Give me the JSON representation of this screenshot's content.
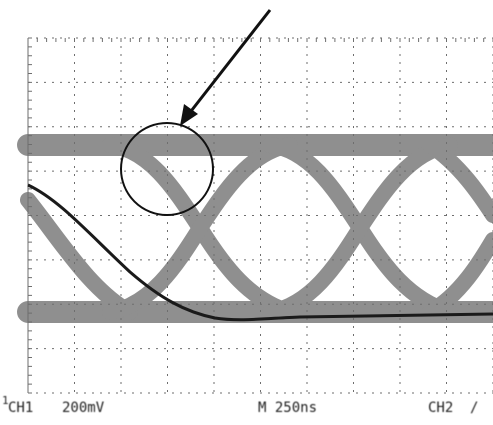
{
  "scope": {
    "marker": "1",
    "ch1_label": "CH1",
    "ch1_scale": "200mV",
    "timebase": "M 250ns",
    "ch2_label": "CH2",
    "ch2_suffix": "/"
  },
  "colors": {
    "eye_band": "#8f8f8f",
    "overlay_trace": "#1a1a1a",
    "grid": "#6e6e6e",
    "annotation": "#111111",
    "background": "#ffffff"
  },
  "annotation": {
    "type": "circle-with-arrow",
    "target": "eye crossover at top rail"
  }
}
